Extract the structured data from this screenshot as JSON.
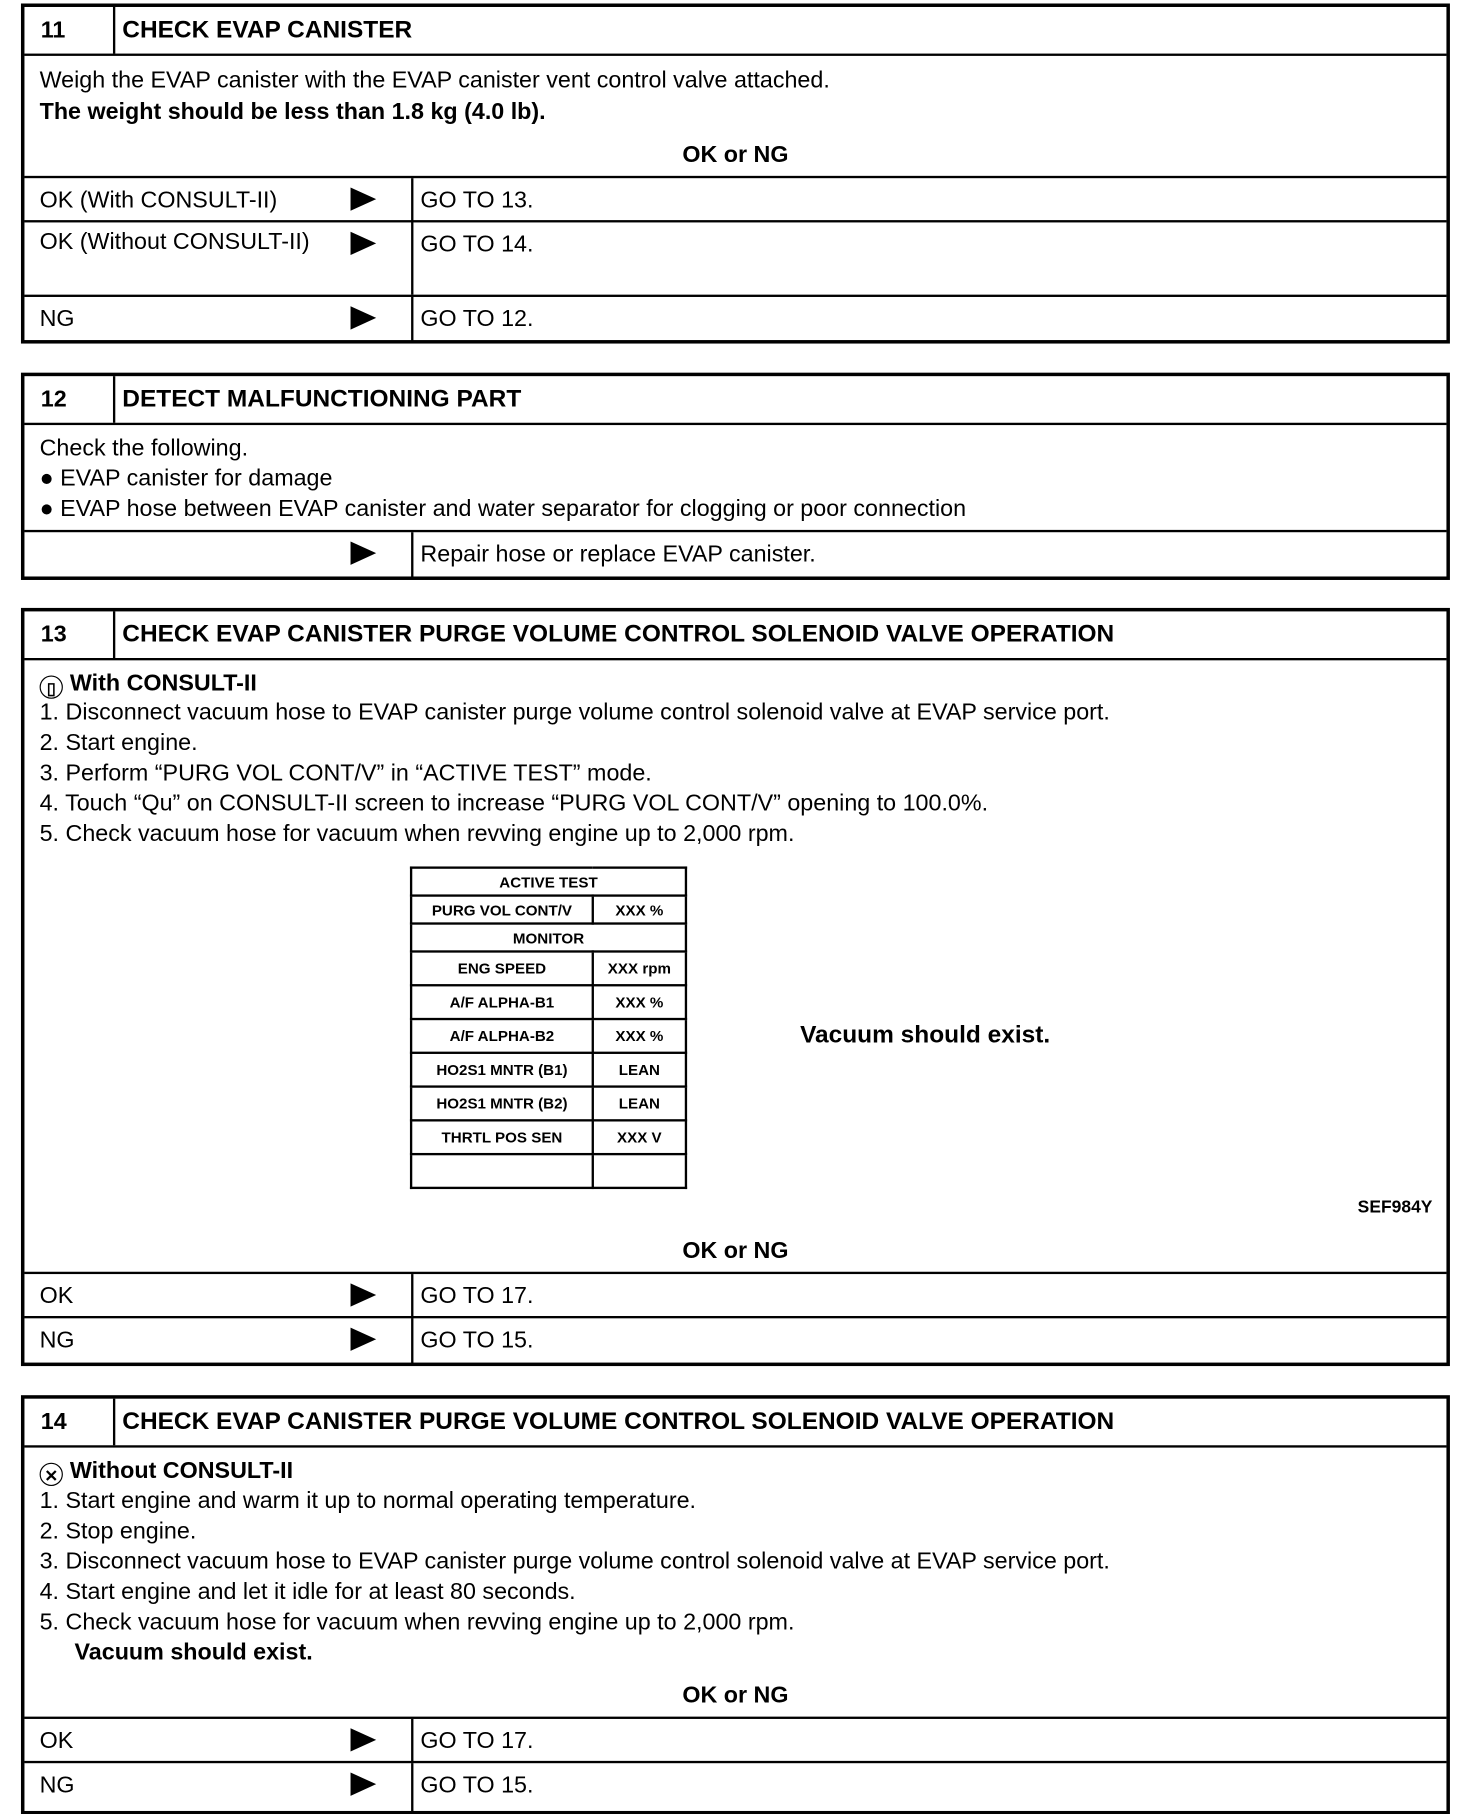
{
  "step11": {
    "number": "11",
    "title": "CHECK EVAP CANISTER",
    "lines": [
      "Weigh the EVAP canister with the EVAP canister vent control valve attached."
    ],
    "bold_line": "The weight should be less than 1.8 kg (4.0 lb).",
    "ok_or_ng": "OK or NG",
    "results": [
      {
        "condition": "OK (With CONSULT-II)",
        "action": "GO TO 13."
      },
      {
        "condition": "OK (Without CONSULT-II)",
        "action": "GO TO 14."
      },
      {
        "condition": "NG",
        "action": "GO TO 12."
      }
    ]
  },
  "step12": {
    "number": "12",
    "title": "DETECT MALFUNCTIONING PART",
    "intro": "Check the following.",
    "bullets": [
      "EVAP canister for damage",
      "EVAP hose between EVAP canister and water separator for clogging or poor connection"
    ],
    "results": [
      {
        "condition": "",
        "action": "Repair hose or replace EVAP canister."
      }
    ]
  },
  "step13": {
    "number": "13",
    "title": "CHECK EVAP CANISTER PURGE VOLUME CONTROL SOLENOID VALVE OPERATION",
    "mode_icon": "consult-ii-icon",
    "mode": "With CONSULT-II",
    "steps": [
      "1.  Disconnect vacuum hose to EVAP canister purge volume control solenoid valve at EVAP service port.",
      "2.  Start engine.",
      "3.  Perform “PURG VOL CONT/V” in “ACTIVE TEST” mode.",
      "4.  Touch “Qu” on CONSULT-II screen to increase “PURG VOL CONT/V” opening to 100.0%.",
      "5.  Check vacuum hose for vacuum when revving engine up to 2,000 rpm."
    ],
    "screen": {
      "active_test": "ACTIVE TEST",
      "test_item": "PURG VOL CONT/V",
      "test_value": "XXX %",
      "monitor": "MONITOR",
      "rows": [
        [
          "ENG SPEED",
          "XXX rpm"
        ],
        [
          "A/F ALPHA-B1",
          "XXX %"
        ],
        [
          "A/F ALPHA-B2",
          "XXX %"
        ],
        [
          "HO2S1 MNTR (B1)",
          "LEAN"
        ],
        [
          "HO2S1 MNTR (B2)",
          "LEAN"
        ],
        [
          "THRTL POS SEN",
          "XXX V"
        ]
      ]
    },
    "note": "Vacuum should exist.",
    "figure_id": "SEF984Y",
    "ok_or_ng": "OK or NG",
    "results": [
      {
        "condition": "OK",
        "action": "GO TO 17."
      },
      {
        "condition": "NG",
        "action": "GO TO 15."
      }
    ]
  },
  "step14": {
    "number": "14",
    "title": "CHECK EVAP CANISTER PURGE VOLUME CONTROL SOLENOID VALVE OPERATION",
    "mode_icon": "without-consult-ii-icon",
    "mode": "Without CONSULT-II",
    "steps": [
      "1.  Start engine and warm it up to normal operating temperature.",
      "2.  Stop engine.",
      "3.  Disconnect vacuum hose to EVAP canister purge volume control solenoid valve at EVAP service port.",
      "4.  Start engine and let it idle for at least 80 seconds.",
      "5.  Check vacuum hose for vacuum when revving engine up to 2,000 rpm."
    ],
    "note": "Vacuum should exist.",
    "ok_or_ng": "OK or NG",
    "results": [
      {
        "condition": "OK",
        "action": "GO TO 17."
      },
      {
        "condition": "NG",
        "action": "GO TO 15."
      }
    ]
  }
}
